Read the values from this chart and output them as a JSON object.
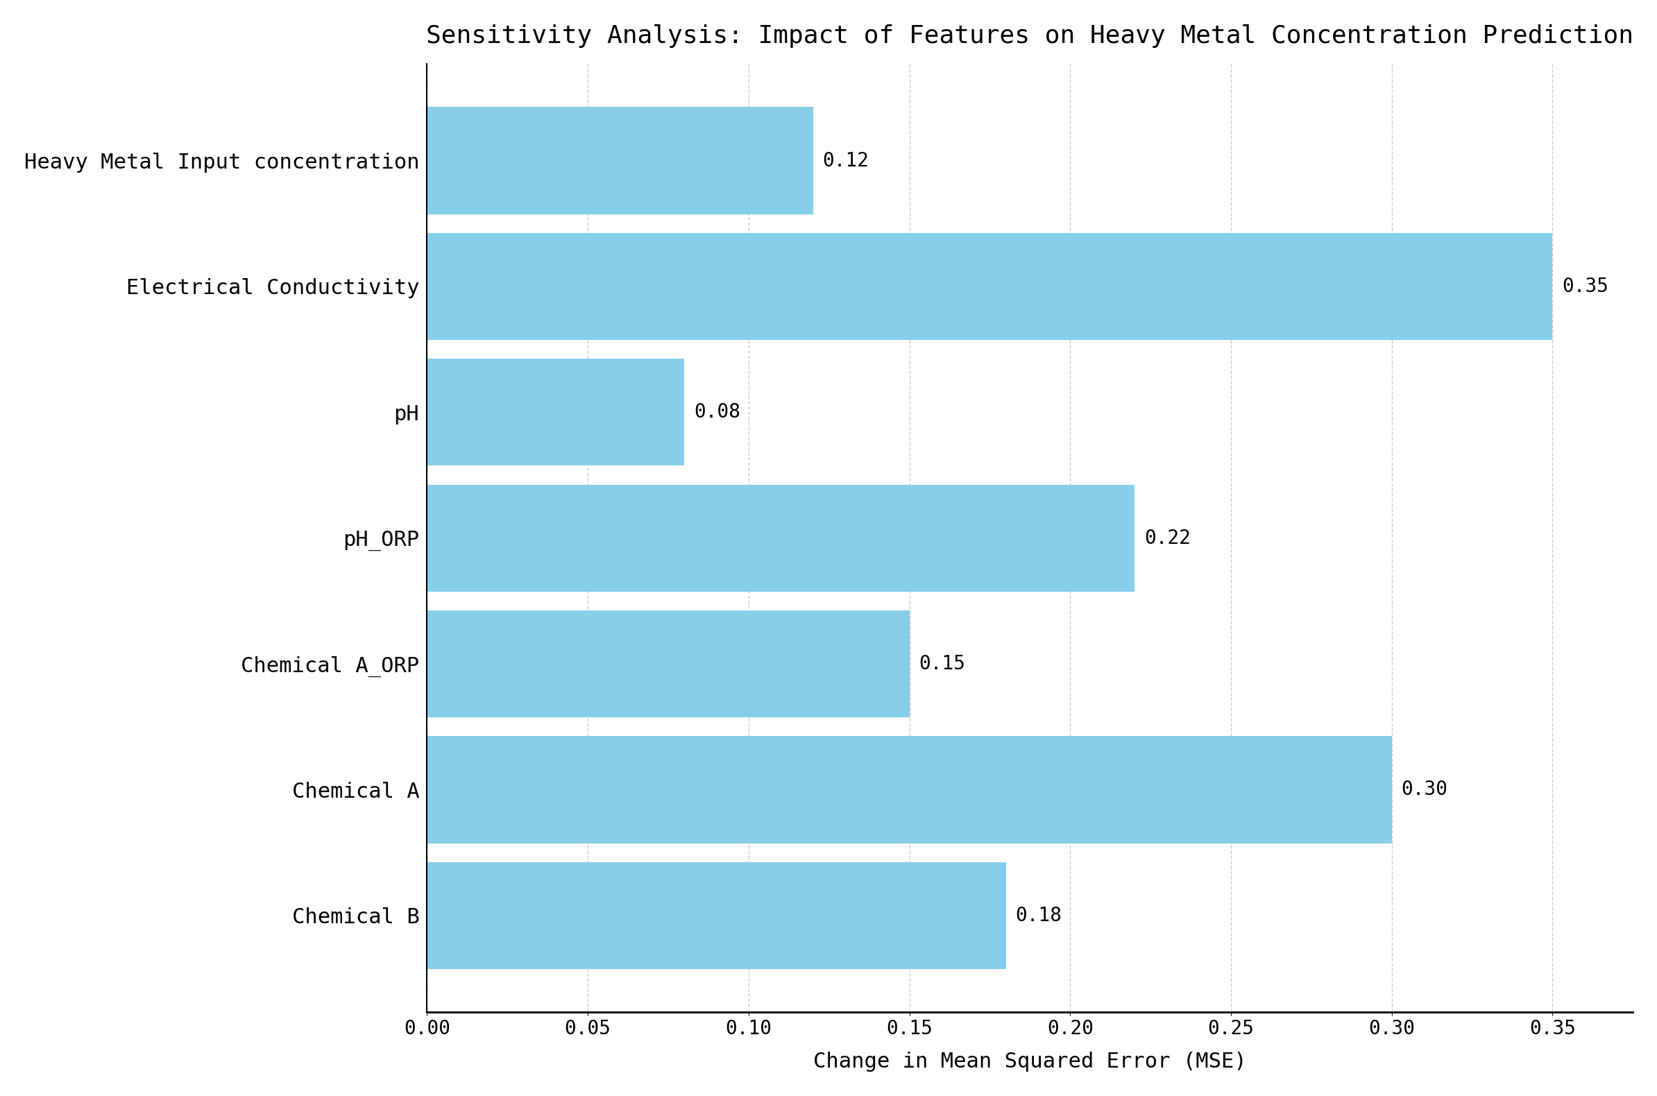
{
  "title": "Sensitivity Analysis: Impact of Features on Heavy Metal Concentration Prediction",
  "xlabel": "Change in Mean Squared Error (MSE)",
  "categories": [
    "Heavy Metal Input concentration",
    "Electrical Conductivity",
    "pH",
    "pH_ORP",
    "Chemical A_ORP",
    "Chemical A",
    "Chemical B"
  ],
  "values": [
    0.12,
    0.35,
    0.08,
    0.22,
    0.15,
    0.3,
    0.18
  ],
  "bar_color": "#87CEEB",
  "bar_edge_color": "none",
  "background_color": "#ffffff",
  "grid_color": "#cccccc",
  "title_fontsize": 26,
  "label_fontsize": 22,
  "tick_fontsize": 20,
  "annotation_fontsize": 20,
  "ytick_fontsize": 22,
  "xlim": [
    0,
    0.375
  ],
  "xticks": [
    0.0,
    0.05,
    0.1,
    0.15,
    0.2,
    0.25,
    0.3,
    0.35
  ],
  "bar_height": 0.85
}
